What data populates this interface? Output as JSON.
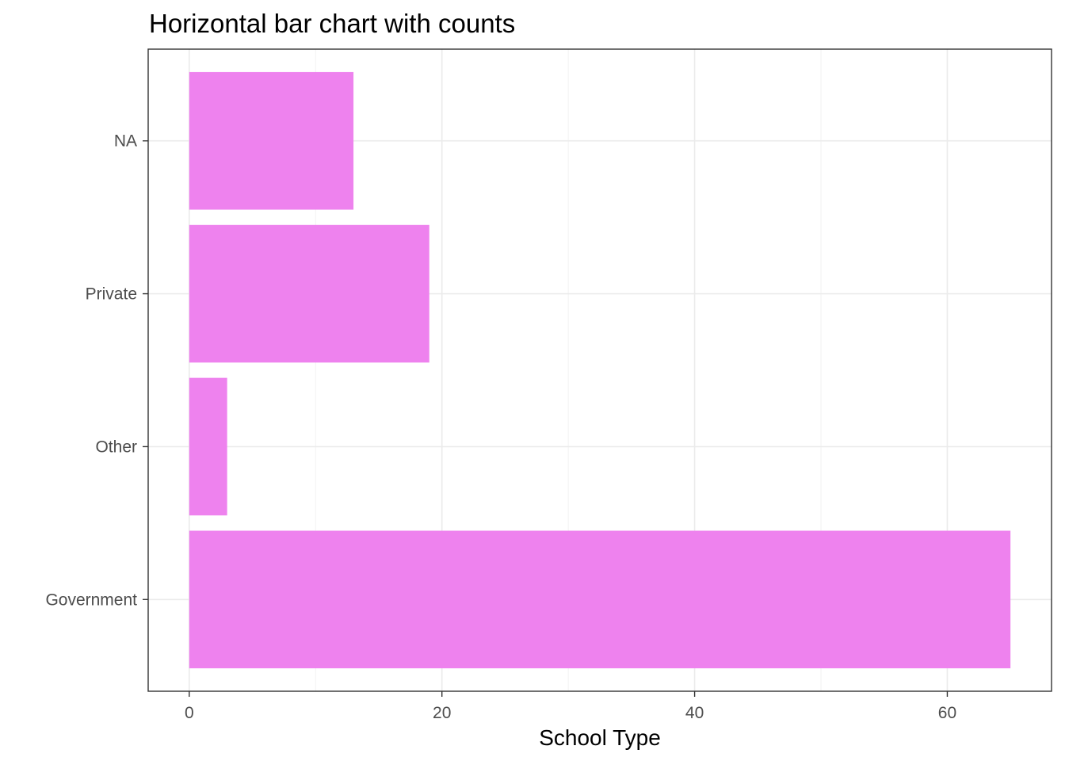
{
  "chart_data": {
    "type": "bar",
    "orientation": "horizontal",
    "title": "Horizontal bar chart with counts",
    "xlabel": "School Type",
    "ylabel": "",
    "categories": [
      "Government",
      "Other",
      "Private",
      "NA"
    ],
    "values": [
      65,
      3,
      19,
      13
    ],
    "xlim": [
      -3.25,
      68.25
    ],
    "xticks": [
      0,
      20,
      40,
      60
    ],
    "xtick_labels": [
      "0",
      "20",
      "40",
      "60"
    ],
    "grid": true,
    "legend": "none",
    "bar_color": "#ee82ee",
    "panel_border": true
  }
}
